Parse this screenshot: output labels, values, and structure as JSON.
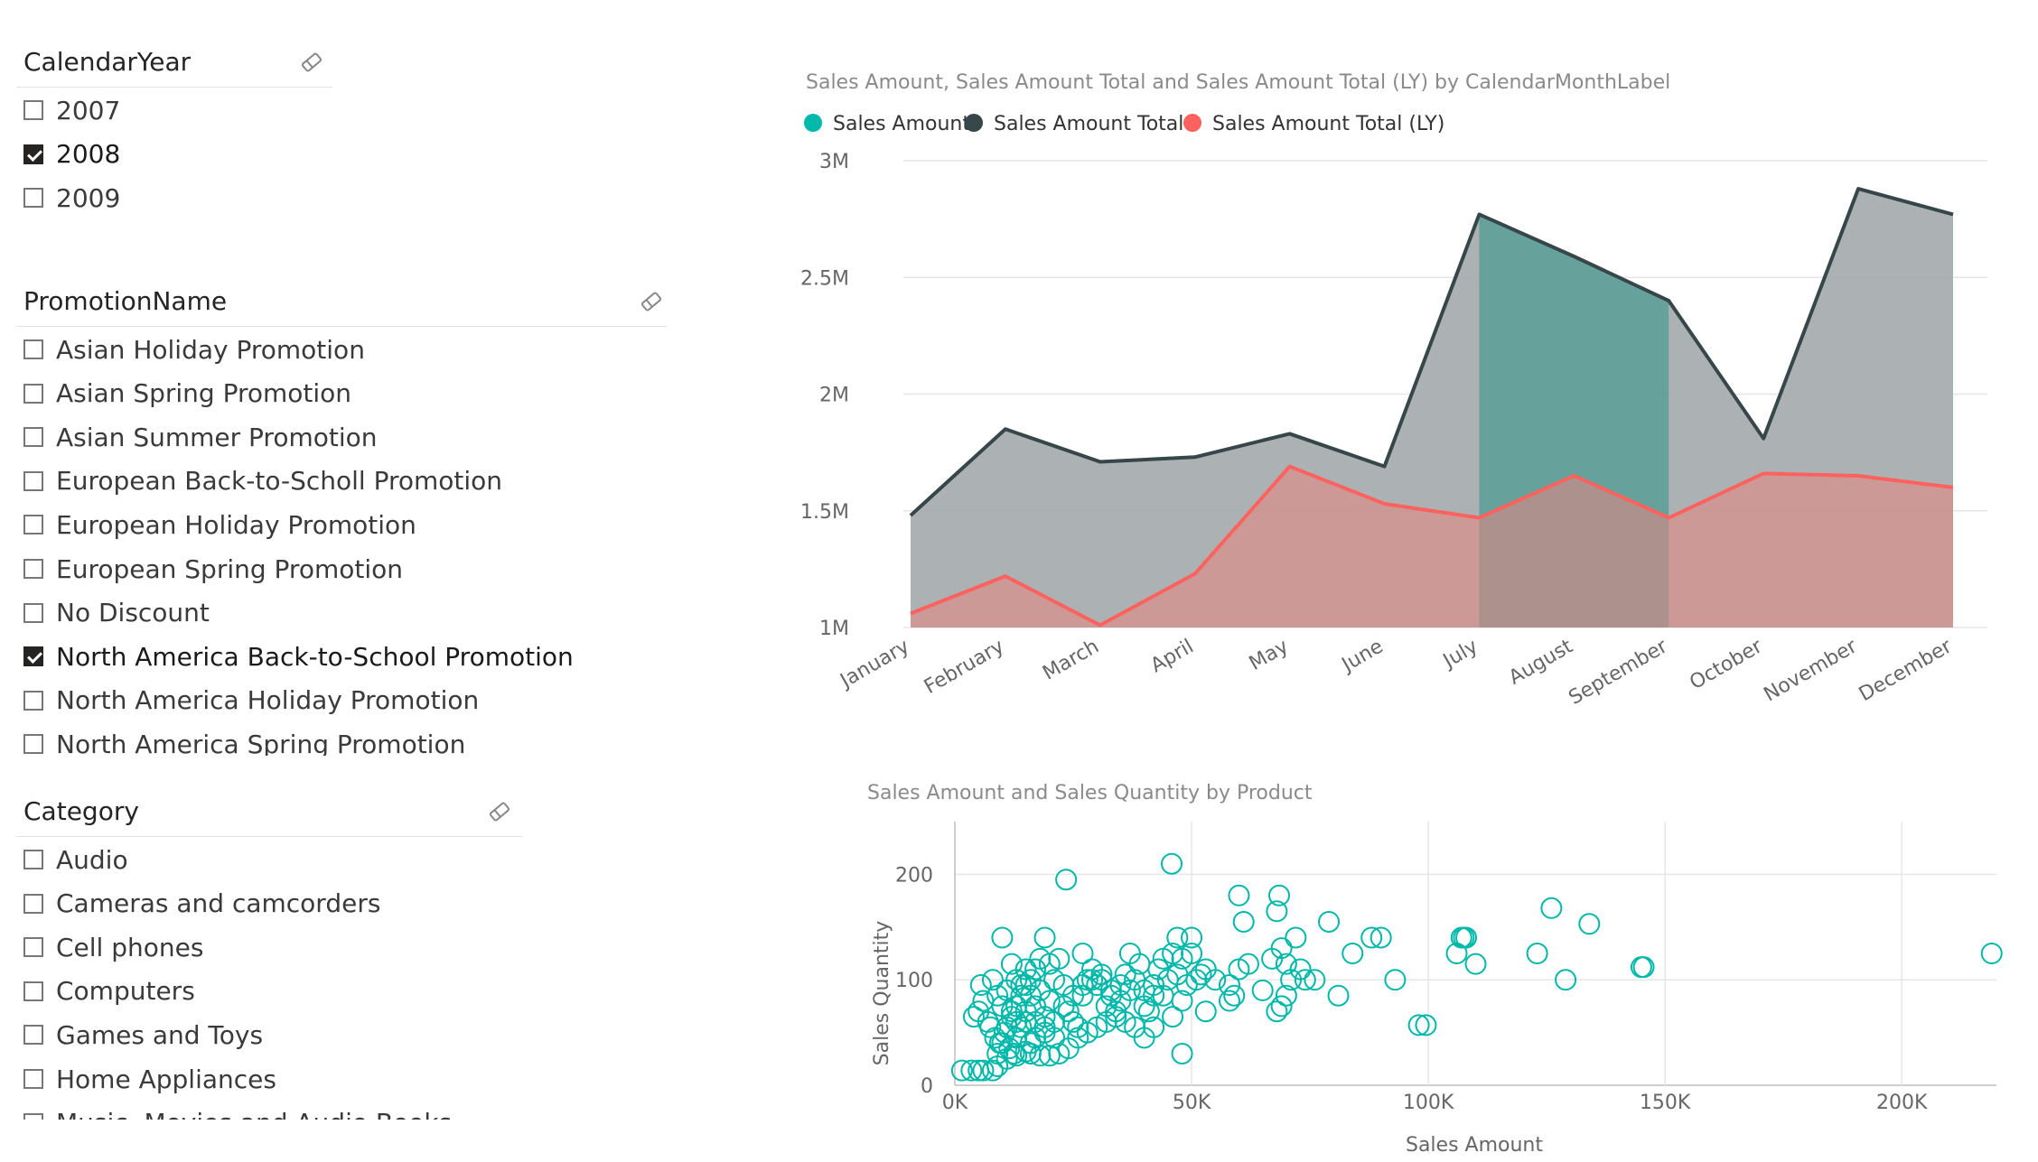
{
  "slicers": {
    "year": {
      "title": "CalendarYear",
      "items": [
        {
          "label": "2007",
          "checked": false
        },
        {
          "label": "2008",
          "checked": true
        },
        {
          "label": "2009",
          "checked": false
        }
      ]
    },
    "promotion": {
      "title": "PromotionName",
      "items": [
        {
          "label": "Asian Holiday Promotion",
          "checked": false
        },
        {
          "label": "Asian Spring Promotion",
          "checked": false
        },
        {
          "label": "Asian Summer Promotion",
          "checked": false
        },
        {
          "label": "European Back-to-Scholl Promotion",
          "checked": false
        },
        {
          "label": "European Holiday Promotion",
          "checked": false
        },
        {
          "label": "European Spring Promotion",
          "checked": false
        },
        {
          "label": "No Discount",
          "checked": false
        },
        {
          "label": "North America Back-to-School Promotion",
          "checked": true
        },
        {
          "label": "North America Holiday Promotion",
          "checked": false
        },
        {
          "label": "North America Spring Promotion",
          "checked": false
        }
      ]
    },
    "category": {
      "title": "Category",
      "items": [
        {
          "label": "Audio",
          "checked": false
        },
        {
          "label": "Cameras and camcorders",
          "checked": false
        },
        {
          "label": "Cell phones",
          "checked": false
        },
        {
          "label": "Computers",
          "checked": false
        },
        {
          "label": "Games and Toys",
          "checked": false
        },
        {
          "label": "Home Appliances",
          "checked": false
        },
        {
          "label": "Music, Movies and Audio Books",
          "checked": false
        }
      ]
    }
  },
  "chart_data": [
    {
      "type": "area",
      "title": "Sales Amount, Sales Amount Total and Sales Amount Total (LY) by CalendarMonthLabel",
      "categories": [
        "January",
        "February",
        "March",
        "April",
        "May",
        "June",
        "July",
        "August",
        "September",
        "October",
        "November",
        "December"
      ],
      "y_ticks": [
        "1M",
        "1.5M",
        "2M",
        "2.5M",
        "3M"
      ],
      "ylim": [
        1000000,
        3000000
      ],
      "grid": true,
      "legend_position": "top-left",
      "series": [
        {
          "name": "Sales Amount",
          "color": "#01B8AA",
          "values": [
            null,
            null,
            null,
            null,
            null,
            null,
            2770000,
            2590000,
            2400000,
            null,
            null,
            null
          ]
        },
        {
          "name": "Sales Amount Total",
          "color": "#374649",
          "values": [
            1480000,
            1850000,
            1710000,
            1730000,
            1830000,
            1690000,
            2770000,
            2590000,
            2400000,
            1810000,
            2880000,
            2770000
          ]
        },
        {
          "name": "Sales Amount Total (LY)",
          "color": "#FD625E",
          "values": [
            1060000,
            1220000,
            1010000,
            1230000,
            1690000,
            1530000,
            1470000,
            1650000,
            1470000,
            1660000,
            1650000,
            1600000
          ]
        }
      ]
    },
    {
      "type": "scatter",
      "title": "Sales Amount and Sales Quantity by Product",
      "xlabel": "Sales Amount",
      "ylabel": "Sales Quantity",
      "x_ticks": [
        "0K",
        "50K",
        "100K",
        "150K",
        "200K"
      ],
      "y_ticks": [
        "0",
        "100",
        "200"
      ],
      "xlim": [
        0,
        220000
      ],
      "ylim": [
        0,
        250
      ],
      "grid": true,
      "series": [
        {
          "name": "",
          "color": "#01B8AA",
          "points": [
            [
              1500,
              14
            ],
            [
              3500,
              14
            ],
            [
              5000,
              14
            ],
            [
              6000,
              14
            ],
            [
              8000,
              14
            ],
            [
              9000,
              18
            ],
            [
              4000,
              65
            ],
            [
              5000,
              70
            ],
            [
              6000,
              80
            ],
            [
              7000,
              60
            ],
            [
              5500,
              95
            ],
            [
              8000,
              100
            ],
            [
              9000,
              85
            ],
            [
              10000,
              75
            ],
            [
              11000,
              90
            ],
            [
              12000,
              70
            ],
            [
              7500,
              55
            ],
            [
              8500,
              45
            ],
            [
              9500,
              40
            ],
            [
              10500,
              50
            ],
            [
              11500,
              35
            ],
            [
              12500,
              30
            ],
            [
              13000,
              45
            ],
            [
              14000,
              55
            ],
            [
              15000,
              60
            ],
            [
              16000,
              40
            ],
            [
              10000,
              140
            ],
            [
              12000,
              115
            ],
            [
              13000,
              100
            ],
            [
              14000,
              95
            ],
            [
              15000,
              110
            ],
            [
              16000,
              85
            ],
            [
              17000,
              75
            ],
            [
              18000,
              90
            ],
            [
              19000,
              65
            ],
            [
              20000,
              80
            ],
            [
              19000,
              140
            ],
            [
              20000,
              115
            ],
            [
              21000,
              100
            ],
            [
              22000,
              120
            ],
            [
              23000,
              95
            ],
            [
              24000,
              70
            ],
            [
              25000,
              60
            ],
            [
              26000,
              55
            ],
            [
              27000,
              85
            ],
            [
              28000,
              100
            ],
            [
              23500,
              195
            ],
            [
              27000,
              125
            ],
            [
              29000,
              110
            ],
            [
              30000,
              95
            ],
            [
              31000,
              100
            ],
            [
              32000,
              75
            ],
            [
              33000,
              90
            ],
            [
              34000,
              65
            ],
            [
              35000,
              80
            ],
            [
              36000,
              60
            ],
            [
              37000,
              125
            ],
            [
              38000,
              100
            ],
            [
              39000,
              115
            ],
            [
              40000,
              90
            ],
            [
              41000,
              70
            ],
            [
              42000,
              85
            ],
            [
              43000,
              110
            ],
            [
              44000,
              120
            ],
            [
              45000,
              100
            ],
            [
              46000,
              65
            ],
            [
              38000,
              55
            ],
            [
              40000,
              75
            ],
            [
              42000,
              95
            ],
            [
              44000,
              85
            ],
            [
              46000,
              125
            ],
            [
              47000,
              105
            ],
            [
              48000,
              80
            ],
            [
              49000,
              95
            ],
            [
              50000,
              125
            ],
            [
              51000,
              100
            ],
            [
              45800,
              210
            ],
            [
              47000,
              140
            ],
            [
              48000,
              120
            ],
            [
              52000,
              105
            ],
            [
              53000,
              110
            ],
            [
              50000,
              140
            ],
            [
              55000,
              100
            ],
            [
              58000,
              95
            ],
            [
              59000,
              85
            ],
            [
              60000,
              110
            ],
            [
              40000,
              45
            ],
            [
              42000,
              55
            ],
            [
              48000,
              30
            ],
            [
              53000,
              70
            ],
            [
              58000,
              80
            ],
            [
              60000,
              180
            ],
            [
              61000,
              155
            ],
            [
              62000,
              115
            ],
            [
              65000,
              90
            ],
            [
              67000,
              120
            ],
            [
              68000,
              165
            ],
            [
              68500,
              180
            ],
            [
              69000,
              130
            ],
            [
              70000,
              115
            ],
            [
              71000,
              100
            ],
            [
              72000,
              140
            ],
            [
              73000,
              110
            ],
            [
              68000,
              70
            ],
            [
              69000,
              75
            ],
            [
              70000,
              85
            ],
            [
              74000,
              100
            ],
            [
              76000,
              100
            ],
            [
              79000,
              155
            ],
            [
              81000,
              85
            ],
            [
              84000,
              125
            ],
            [
              88000,
              140
            ],
            [
              90000,
              140
            ],
            [
              93000,
              100
            ],
            [
              98000,
              57
            ],
            [
              99500,
              57
            ],
            [
              107000,
              140
            ],
            [
              107500,
              140
            ],
            [
              108000,
              140
            ],
            [
              106000,
              125
            ],
            [
              110000,
              115
            ],
            [
              123000,
              125
            ],
            [
              126000,
              168
            ],
            [
              129000,
              100
            ],
            [
              134000,
              153
            ],
            [
              145000,
              112
            ],
            [
              145500,
              112
            ],
            [
              219000,
              125
            ],
            [
              16000,
              30
            ],
            [
              18000,
              28
            ],
            [
              20000,
              28
            ],
            [
              22000,
              30
            ],
            [
              24000,
              35
            ],
            [
              26000,
              45
            ],
            [
              28000,
              50
            ],
            [
              30000,
              55
            ],
            [
              32000,
              60
            ],
            [
              34000,
              70
            ],
            [
              21000,
              60
            ],
            [
              23000,
              75
            ],
            [
              25000,
              85
            ],
            [
              27000,
              95
            ],
            [
              29000,
              100
            ],
            [
              31000,
              105
            ],
            [
              33000,
              85
            ],
            [
              35000,
              95
            ],
            [
              36000,
              105
            ],
            [
              37000,
              90
            ],
            [
              13000,
              60
            ],
            [
              15000,
              70
            ],
            [
              17000,
              60
            ],
            [
              19000,
              50
            ],
            [
              21000,
              45
            ],
            [
              11000,
              25
            ],
            [
              13000,
              28
            ],
            [
              15000,
              32
            ],
            [
              17000,
              45
            ],
            [
              19000,
              55
            ],
            [
              9000,
              30
            ],
            [
              10000,
              40
            ],
            [
              11000,
              55
            ],
            [
              12000,
              65
            ],
            [
              13000,
              75
            ],
            [
              14000,
              85
            ],
            [
              15000,
              95
            ],
            [
              16000,
              100
            ],
            [
              17000,
              110
            ],
            [
              18000,
              120
            ]
          ]
        }
      ]
    }
  ]
}
